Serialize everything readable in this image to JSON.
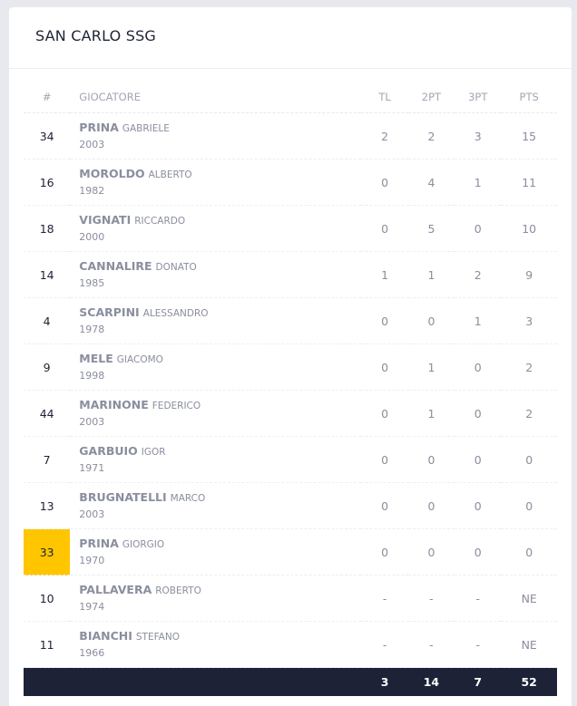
{
  "team": {
    "name": "SAN CARLO SSG"
  },
  "columns": {
    "number": "#",
    "player": "GIOCATORE",
    "tl": "TL",
    "pt2": "2PT",
    "pt3": "3PT",
    "pts": "PTS"
  },
  "players": [
    {
      "number": "34",
      "surname": "PRINA",
      "firstname": "GABRIELE",
      "year": "2003",
      "tl": "2",
      "pt2": "2",
      "pt3": "3",
      "pts": "15",
      "highlight": false
    },
    {
      "number": "16",
      "surname": "MOROLDO",
      "firstname": "ALBERTO",
      "year": "1982",
      "tl": "0",
      "pt2": "4",
      "pt3": "1",
      "pts": "11",
      "highlight": false
    },
    {
      "number": "18",
      "surname": "VIGNATI",
      "firstname": "RICCARDO",
      "year": "2000",
      "tl": "0",
      "pt2": "5",
      "pt3": "0",
      "pts": "10",
      "highlight": false
    },
    {
      "number": "14",
      "surname": "CANNALIRE",
      "firstname": "DONATO",
      "year": "1985",
      "tl": "1",
      "pt2": "1",
      "pt3": "2",
      "pts": "9",
      "highlight": false
    },
    {
      "number": "4",
      "surname": "SCARPINI",
      "firstname": "ALESSANDRO",
      "year": "1978",
      "tl": "0",
      "pt2": "0",
      "pt3": "1",
      "pts": "3",
      "highlight": false
    },
    {
      "number": "9",
      "surname": "MELE",
      "firstname": "GIACOMO",
      "year": "1998",
      "tl": "0",
      "pt2": "1",
      "pt3": "0",
      "pts": "2",
      "highlight": false
    },
    {
      "number": "44",
      "surname": "MARINONE",
      "firstname": "FEDERICO",
      "year": "2003",
      "tl": "0",
      "pt2": "1",
      "pt3": "0",
      "pts": "2",
      "highlight": false
    },
    {
      "number": "7",
      "surname": "GARBUIO",
      "firstname": "IGOR",
      "year": "1971",
      "tl": "0",
      "pt2": "0",
      "pt3": "0",
      "pts": "0",
      "highlight": false
    },
    {
      "number": "13",
      "surname": "BRUGNATELLI",
      "firstname": "MARCO",
      "year": "2003",
      "tl": "0",
      "pt2": "0",
      "pt3": "0",
      "pts": "0",
      "highlight": false
    },
    {
      "number": "33",
      "surname": "PRINA",
      "firstname": "GIORGIO",
      "year": "1970",
      "tl": "0",
      "pt2": "0",
      "pt3": "0",
      "pts": "0",
      "highlight": true
    },
    {
      "number": "10",
      "surname": "PALLAVERA",
      "firstname": "ROBERTO",
      "year": "1974",
      "tl": "-",
      "pt2": "-",
      "pt3": "-",
      "pts": "NE",
      "highlight": false
    },
    {
      "number": "11",
      "surname": "BIANCHI",
      "firstname": "STEFANO",
      "year": "1966",
      "tl": "-",
      "pt2": "-",
      "pt3": "-",
      "pts": "NE",
      "highlight": false
    }
  ],
  "totals": {
    "tl": "3",
    "pt2": "14",
    "pt3": "7",
    "pts": "52"
  },
  "colors": {
    "highlight": "#ffc600",
    "total_bg": "#1d2237",
    "muted_text": "#8a8e9e"
  }
}
